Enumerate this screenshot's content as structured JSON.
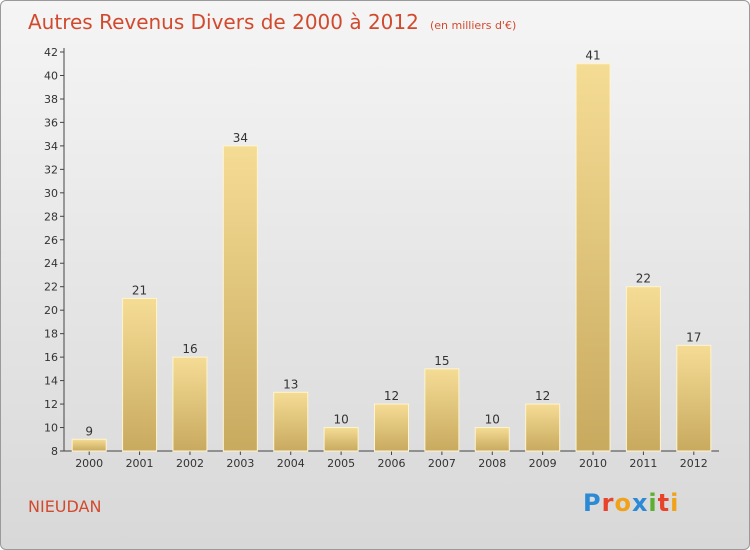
{
  "title": "Autres Revenus Divers de 2000 à 2012",
  "unit": "(en milliers d'€)",
  "commune": "NIEUDAN",
  "logo": [
    "P",
    "r",
    "o",
    "x",
    "i",
    "t",
    "i"
  ],
  "colors": {
    "title": "#d24a2e",
    "bar_light": "#f5dc95",
    "bar_dark": "#c8aa5f",
    "logo": [
      "#2a8ad5",
      "#e8442c",
      "#f0a21b",
      "#2a8ad5",
      "#5bb031",
      "#e8442c",
      "#f0a21b"
    ]
  },
  "chart_data": {
    "type": "bar",
    "categories": [
      "2000",
      "2001",
      "2002",
      "2003",
      "2004",
      "2005",
      "2006",
      "2007",
      "2008",
      "2009",
      "2010",
      "2011",
      "2012"
    ],
    "values": [
      9,
      21,
      16,
      34,
      13,
      10,
      12,
      15,
      10,
      12,
      41,
      22,
      17
    ],
    "ylim": [
      8,
      42
    ],
    "yticks": [
      8,
      10,
      12,
      14,
      16,
      18,
      20,
      22,
      24,
      26,
      28,
      30,
      32,
      34,
      36,
      38,
      40,
      42
    ],
    "grid": false
  }
}
